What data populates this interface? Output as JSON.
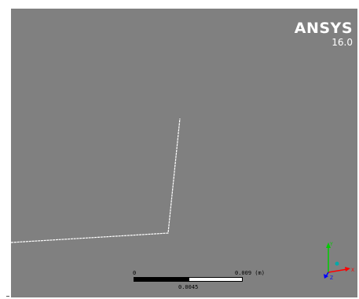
{
  "brand": {
    "name": "ANSYS",
    "version": "16.0"
  },
  "scale_bar": {
    "start_label": "0",
    "end_label": "0.009 (m)",
    "mid_label": "0.0045"
  },
  "axis_triad": {
    "x_label": "X",
    "y_label": "Y",
    "z_label": "Z",
    "colors": {
      "x": "#ff0000",
      "y": "#00cc00",
      "z": "#0000ff",
      "iso": "#00aaaa"
    }
  },
  "colors": {
    "background": "#808080",
    "geometry_line": "#ffffff"
  }
}
